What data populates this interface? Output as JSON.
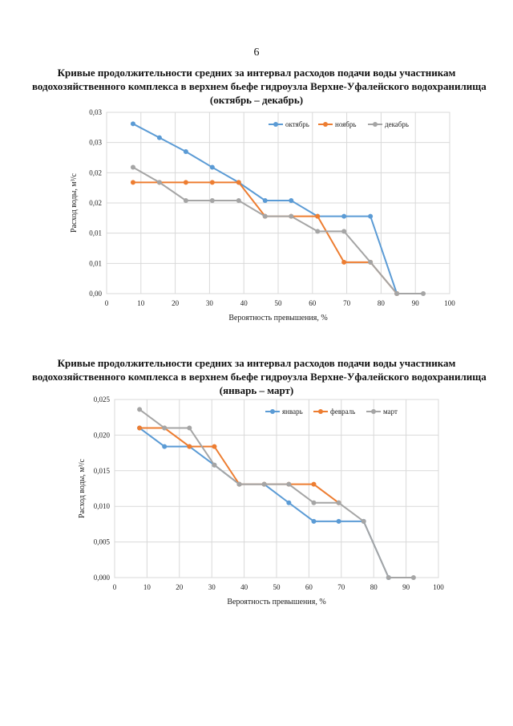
{
  "page": {
    "number": "6"
  },
  "chart_data": [
    {
      "type": "line",
      "title_lines": [
        "Кривые продолжительности средних за интервал расходов подачи воды участникам",
        "водохозяйственного комплекса в верхнем бьефе гидроузла Верхне-Уфалейского водохранилища",
        "(октябрь – декабрь)"
      ],
      "xlabel": "Вероятность превышения, %",
      "ylabel": "Расход воды, м³/с",
      "xlim": [
        0,
        100
      ],
      "ylim": [
        0,
        0.03
      ],
      "x_ticks": [
        "0",
        "10",
        "20",
        "30",
        "40",
        "50",
        "60",
        "70",
        "80",
        "90",
        "100"
      ],
      "y_ticks": [
        "0,00",
        "0,01",
        "0,01",
        "0,02",
        "0,02",
        "0,03",
        "0,03"
      ],
      "grid": true,
      "legend_position": "top-right",
      "series": [
        {
          "name": "октябрь",
          "color": "#5b9bd5",
          "x": [
            7.7,
            15.4,
            23.1,
            30.8,
            38.5,
            46.2,
            53.8,
            61.5,
            69.2,
            76.9,
            84.6
          ],
          "y": [
            0.0281,
            0.0258,
            0.0235,
            0.0209,
            0.0184,
            0.0154,
            0.0154,
            0.0128,
            0.0128,
            0.0128,
            0.0
          ]
        },
        {
          "name": "ноябрь",
          "color": "#ed7d31",
          "x": [
            7.7,
            15.4,
            23.1,
            30.8,
            38.5,
            46.2,
            53.8,
            61.5,
            69.2,
            76.9,
            84.6
          ],
          "y": [
            0.0184,
            0.0184,
            0.0184,
            0.0184,
            0.0184,
            0.0128,
            0.0128,
            0.0128,
            0.0052,
            0.0052,
            0.0
          ]
        },
        {
          "name": "декабрь",
          "color": "#a5a5a5",
          "x": [
            7.7,
            15.4,
            23.1,
            30.8,
            38.5,
            46.2,
            53.8,
            61.5,
            69.2,
            76.9,
            84.6,
            92.3
          ],
          "y": [
            0.0209,
            0.0184,
            0.0154,
            0.0154,
            0.0154,
            0.0128,
            0.0128,
            0.0103,
            0.0103,
            0.0052,
            0.0,
            0.0
          ]
        }
      ]
    },
    {
      "type": "line",
      "title_lines": [
        "Кривые продолжительности средних за интервал расходов подачи воды участникам",
        "водохозяйственного комплекса в верхнем бьефе гидроузла Верхне-Уфалейского водохранилища",
        "(январь – март)"
      ],
      "xlabel": "Вероятность превышения, %",
      "ylabel": "Расход воды, м³/с",
      "xlim": [
        0,
        100
      ],
      "ylim": [
        0,
        0.025
      ],
      "x_ticks": [
        "0",
        "10",
        "20",
        "30",
        "40",
        "50",
        "60",
        "70",
        "80",
        "90",
        "100"
      ],
      "y_ticks": [
        "0,000",
        "0,005",
        "0,010",
        "0,015",
        "0,020",
        "0,025"
      ],
      "grid": true,
      "legend_position": "top-right",
      "series": [
        {
          "name": "январь",
          "color": "#5b9bd5",
          "x": [
            7.7,
            15.4,
            23.1,
            30.8,
            38.5,
            46.2,
            53.8,
            61.5,
            69.2,
            76.9,
            84.6
          ],
          "y": [
            0.021,
            0.0184,
            0.0184,
            0.0158,
            0.0131,
            0.0131,
            0.0105,
            0.0079,
            0.0079,
            0.0079,
            0.0
          ]
        },
        {
          "name": "февраль",
          "color": "#ed7d31",
          "x": [
            7.7,
            15.4,
            23.1,
            30.8,
            38.5,
            46.2,
            53.8,
            61.5,
            69.2
          ],
          "y": [
            0.021,
            0.021,
            0.0184,
            0.0184,
            0.0131,
            0.0131,
            0.0131,
            0.0131,
            0.0105
          ]
        },
        {
          "name": "март",
          "color": "#a5a5a5",
          "x": [
            7.7,
            15.4,
            23.1,
            30.8,
            38.5,
            46.2,
            53.8,
            61.5,
            69.2,
            76.9,
            84.6,
            92.3
          ],
          "y": [
            0.0236,
            0.021,
            0.021,
            0.0158,
            0.0131,
            0.0131,
            0.0131,
            0.0105,
            0.0105,
            0.0079,
            0.0,
            0.0
          ]
        }
      ]
    }
  ]
}
